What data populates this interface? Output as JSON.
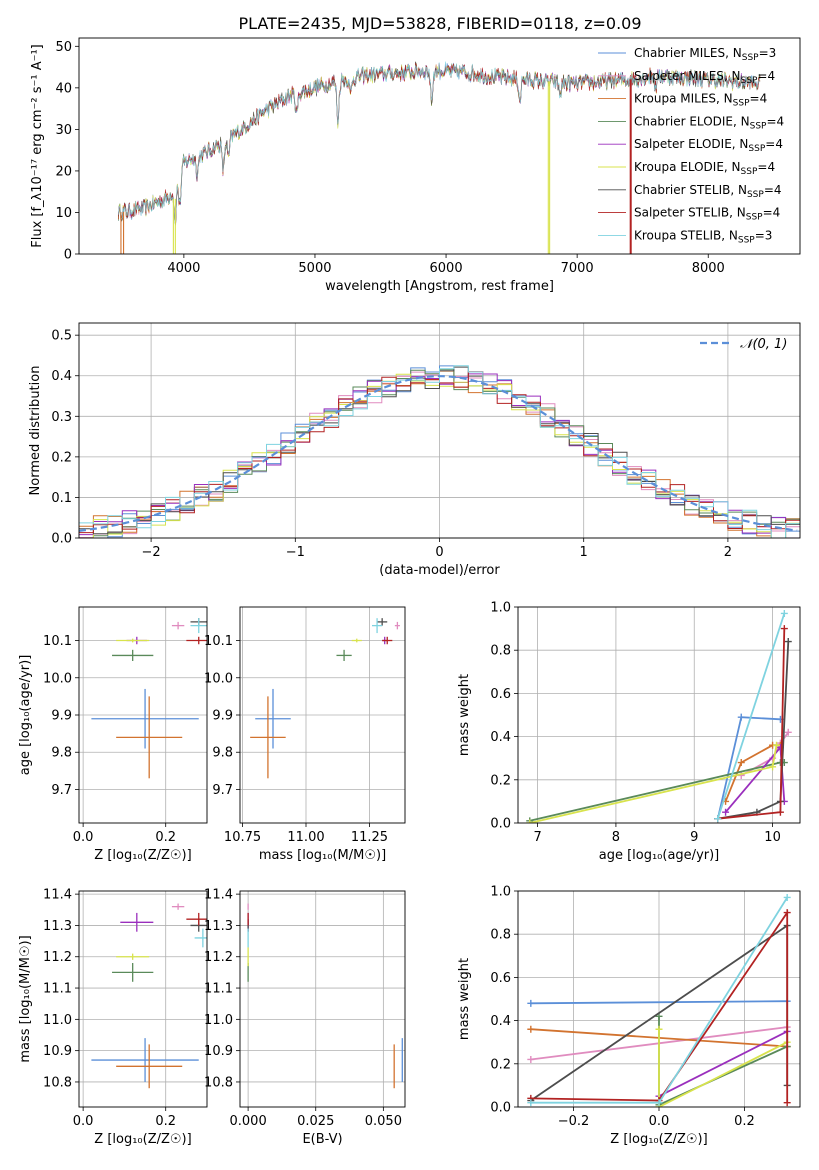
{
  "figure_title": "PLATE=2435, MJD=53828, FIBERID=0118, z=0.09",
  "colors": {
    "Chabrier MILES": "#5b8fd8",
    "Salpeter MILES": "#e08cbf",
    "Kroupa MILES": "#d2732f",
    "Chabrier ELODIE": "#5a8a5a",
    "Salpeter ELODIE": "#9a2fbd",
    "Kroupa ELODIE": "#d8e34d",
    "Chabrier STELIB": "#4d4d4d",
    "Salpeter STELIB": "#b22222",
    "Kroupa STELIB": "#7fd3e0"
  },
  "chart_data": [
    {
      "id": "spectrum",
      "type": "line",
      "title": "PLATE=2435, MJD=53828, FIBERID=0118, z=0.09",
      "xlabel": "wavelength [Angstrom, rest frame]",
      "ylabel": "Flux [f_λ10⁻¹⁷ erg cm⁻² s⁻¹ A⁻¹]",
      "xlim": [
        3200,
        8700
      ],
      "ylim": [
        0,
        52
      ],
      "xticks": [
        4000,
        5000,
        6000,
        7000,
        8000
      ],
      "yticks": [
        0,
        10,
        20,
        30,
        40,
        50
      ],
      "grid": false,
      "legend_position": "top-right",
      "legend": [
        {
          "label": "Chabrier MILES, N",
          "sub": "SSP",
          "tail": "=3",
          "color": "#5b8fd8"
        },
        {
          "label": "Salpeter MILES, N",
          "sub": "SSP",
          "tail": "=4",
          "color": "#e08cbf"
        },
        {
          "label": "Kroupa MILES, N",
          "sub": "SSP",
          "tail": "=4",
          "color": "#d2732f"
        },
        {
          "label": "Chabrier ELODIE, N",
          "sub": "SSP",
          "tail": "=4",
          "color": "#5a8a5a"
        },
        {
          "label": "Salpeter ELODIE, N",
          "sub": "SSP",
          "tail": "=4",
          "color": "#9a2fbd"
        },
        {
          "label": "Kroupa ELODIE, N",
          "sub": "SSP",
          "tail": "=4",
          "color": "#d8e34d"
        },
        {
          "label": "Chabrier STELIB, N",
          "sub": "SSP",
          "tail": "=4",
          "color": "#4d4d4d"
        },
        {
          "label": "Salpeter STELIB, N",
          "sub": "SSP",
          "tail": "=4",
          "color": "#b22222"
        },
        {
          "label": "Kroupa STELIB, N",
          "sub": "SSP",
          "tail": "=3",
          "color": "#7fd3e0"
        }
      ],
      "continuum": [
        [
          3500,
          10
        ],
        [
          3700,
          11
        ],
        [
          3900,
          14
        ],
        [
          4000,
          22
        ],
        [
          4200,
          25
        ],
        [
          4400,
          29
        ],
        [
          4600,
          34
        ],
        [
          4800,
          38
        ],
        [
          5000,
          40
        ],
        [
          5200,
          42
        ],
        [
          5400,
          43
        ],
        [
          5600,
          43.5
        ],
        [
          5800,
          44
        ],
        [
          6000,
          44
        ],
        [
          6200,
          43.5
        ],
        [
          6400,
          42.5
        ],
        [
          6600,
          42
        ],
        [
          6800,
          41.5
        ],
        [
          7000,
          41
        ],
        [
          7200,
          41.5
        ],
        [
          7400,
          42
        ],
        [
          7600,
          43
        ],
        [
          8000,
          42
        ],
        [
          8400,
          41
        ]
      ],
      "absorption_lines": [
        [
          3934,
          9
        ],
        [
          3969,
          8
        ],
        [
          4102,
          4
        ],
        [
          4300,
          7
        ],
        [
          4340,
          5
        ],
        [
          4861,
          5
        ],
        [
          5175,
          10
        ],
        [
          5270,
          4
        ],
        [
          5890,
          7
        ],
        [
          6563,
          5
        ],
        [
          6870,
          3
        ],
        [
          7600,
          3
        ]
      ],
      "model_sentinel_drops": [
        [
          3520,
          3540,
          "#d2732f"
        ],
        [
          3920,
          3935,
          "#d8e34d"
        ],
        [
          6780,
          6790,
          "#d8e34d"
        ],
        [
          7405,
          7412,
          "#b22222"
        ]
      ]
    },
    {
      "id": "residuals",
      "type": "bar",
      "xlabel": "(data-model)/error",
      "ylabel": "Normed distribution",
      "xlim": [
        -2.5,
        2.5
      ],
      "ylim": [
        0,
        0.53
      ],
      "xticks": [
        -2,
        -1,
        0,
        1,
        2
      ],
      "yticks": [
        0.0,
        0.1,
        0.2,
        0.3,
        0.4,
        0.5
      ],
      "grid": true,
      "legend_position": "top-right",
      "legend": [
        {
          "label": "𝒩(0, 1)",
          "color": "#5b8fd8",
          "dashed": true
        }
      ],
      "bin_width": 0.1
    },
    {
      "id": "age_vs_Z",
      "type": "scatter",
      "xlabel": "Z [log₁₀(Z/Z☉)]",
      "ylabel": "age  [log₁₀(age/yr)]",
      "xlim": [
        -0.01,
        0.3
      ],
      "ylim": [
        9.61,
        10.19
      ],
      "xticks": [
        0.0,
        0.2
      ],
      "yticks": [
        9.7,
        9.8,
        9.9,
        10.0,
        10.1
      ],
      "grid": true,
      "points": [
        {
          "model": "Chabrier MILES",
          "x": 0.15,
          "xerr": 0.13,
          "y": 9.89,
          "yerr": 0.08
        },
        {
          "model": "Kroupa MILES",
          "x": 0.16,
          "xerr": 0.08,
          "y": 9.84,
          "yerr": 0.11
        },
        {
          "model": "Salpeter MILES",
          "x": 0.23,
          "xerr": 0.015,
          "y": 10.14,
          "yerr": 0.01
        },
        {
          "model": "Chabrier ELODIE",
          "x": 0.12,
          "xerr": 0.05,
          "y": 10.06,
          "yerr": 0.015
        },
        {
          "model": "Salpeter ELODIE",
          "x": 0.13,
          "xerr": 0.025,
          "y": 10.1,
          "yerr": 0.01
        },
        {
          "model": "Kroupa ELODIE",
          "x": 0.12,
          "xerr": 0.04,
          "y": 10.1,
          "yerr": 0.005
        },
        {
          "model": "Chabrier STELIB",
          "x": 0.28,
          "xerr": 0.02,
          "y": 10.15,
          "yerr": 0.01
        },
        {
          "model": "Salpeter STELIB",
          "x": 0.28,
          "xerr": 0.03,
          "y": 10.1,
          "yerr": 0.01
        },
        {
          "model": "Kroupa STELIB",
          "x": 0.28,
          "xerr": 0.02,
          "y": 10.14,
          "yerr": 0.02
        }
      ]
    },
    {
      "id": "age_vs_mass",
      "type": "scatter",
      "xlabel": "mass [log₁₀(M/M☉)]",
      "xlim": [
        10.74,
        11.39
      ],
      "ylim": [
        9.61,
        10.19
      ],
      "xticks": [
        10.75,
        11.0,
        11.25
      ],
      "yticks": [
        9.7,
        9.8,
        9.9,
        10.0,
        10.1
      ],
      "grid": true,
      "points": [
        {
          "model": "Chabrier MILES",
          "x": 10.87,
          "xerr": 0.07,
          "y": 9.89,
          "yerr": 0.08
        },
        {
          "model": "Kroupa MILES",
          "x": 10.85,
          "xerr": 0.07,
          "y": 9.84,
          "yerr": 0.11
        },
        {
          "model": "Salpeter MILES",
          "x": 11.36,
          "xerr": 0.01,
          "y": 10.14,
          "yerr": 0.01
        },
        {
          "model": "Chabrier ELODIE",
          "x": 11.15,
          "xerr": 0.03,
          "y": 10.06,
          "yerr": 0.015
        },
        {
          "model": "Salpeter ELODIE",
          "x": 11.31,
          "xerr": 0.01,
          "y": 10.1,
          "yerr": 0.01
        },
        {
          "model": "Kroupa ELODIE",
          "x": 11.2,
          "xerr": 0.02,
          "y": 10.1,
          "yerr": 0.005
        },
        {
          "model": "Chabrier STELIB",
          "x": 11.3,
          "xerr": 0.02,
          "y": 10.15,
          "yerr": 0.01
        },
        {
          "model": "Salpeter STELIB",
          "x": 11.32,
          "xerr": 0.02,
          "y": 10.1,
          "yerr": 0.01
        },
        {
          "model": "Kroupa STELIB",
          "x": 11.28,
          "xerr": 0.02,
          "y": 10.14,
          "yerr": 0.02
        }
      ]
    },
    {
      "id": "mass_weight_vs_age",
      "type": "line",
      "xlabel": "age  [log₁₀(age/yr)]",
      "ylabel": "mass weight",
      "xlim": [
        6.75,
        10.35
      ],
      "ylim": [
        0,
        1
      ],
      "xticks": [
        7,
        8,
        9,
        10
      ],
      "yticks": [
        0.0,
        0.2,
        0.4,
        0.6,
        0.8,
        1.0
      ],
      "grid": true,
      "series": [
        {
          "model": "Chabrier MILES",
          "x": [
            9.3,
            9.6,
            10.1
          ],
          "y": [
            0.02,
            0.49,
            0.48
          ]
        },
        {
          "model": "Salpeter MILES",
          "x": [
            9.6,
            10.0,
            10.1,
            10.2
          ],
          "y": [
            0.22,
            0.3,
            0.37,
            0.42
          ]
        },
        {
          "model": "Kroupa MILES",
          "x": [
            9.4,
            9.6,
            10.0,
            10.1
          ],
          "y": [
            0.1,
            0.28,
            0.36,
            0.36
          ]
        },
        {
          "model": "Chabrier ELODIE",
          "x": [
            6.9,
            10.1,
            10.15
          ],
          "y": [
            0.01,
            0.28,
            0.28
          ]
        },
        {
          "model": "Salpeter ELODIE",
          "x": [
            9.4,
            10.1,
            10.15
          ],
          "y": [
            0.05,
            0.35,
            0.1
          ]
        },
        {
          "model": "Kroupa ELODIE",
          "x": [
            6.9,
            10.0,
            10.05
          ],
          "y": [
            0.0,
            0.26,
            0.36
          ]
        },
        {
          "model": "Chabrier STELIB",
          "x": [
            9.3,
            9.8,
            10.1,
            10.2
          ],
          "y": [
            0.02,
            0.05,
            0.1,
            0.84
          ]
        },
        {
          "model": "Salpeter STELIB",
          "x": [
            9.3,
            10.1,
            10.15
          ],
          "y": [
            0.02,
            0.05,
            0.9
          ]
        },
        {
          "model": "Kroupa STELIB",
          "x": [
            9.3,
            10.15
          ],
          "y": [
            0.02,
            0.97
          ]
        }
      ]
    },
    {
      "id": "mass_vs_Z",
      "type": "scatter",
      "xlabel": "Z [log₁₀(Z/Z☉)]",
      "ylabel": "mass [log₁₀(M/M☉)]",
      "xlim": [
        -0.01,
        0.3
      ],
      "ylim": [
        10.72,
        11.41
      ],
      "xticks": [
        0.0,
        0.2
      ],
      "yticks": [
        10.8,
        10.9,
        11.0,
        11.1,
        11.2,
        11.3,
        11.4
      ],
      "grid": true,
      "points": [
        {
          "model": "Chabrier MILES",
          "x": 0.15,
          "xerr": 0.13,
          "y": 10.87,
          "yerr": 0.07
        },
        {
          "model": "Kroupa MILES",
          "x": 0.16,
          "xerr": 0.08,
          "y": 10.85,
          "yerr": 0.07
        },
        {
          "model": "Salpeter MILES",
          "x": 0.23,
          "xerr": 0.015,
          "y": 11.36,
          "yerr": 0.01
        },
        {
          "model": "Chabrier ELODIE",
          "x": 0.12,
          "xerr": 0.05,
          "y": 11.15,
          "yerr": 0.03
        },
        {
          "model": "Salpeter ELODIE",
          "x": 0.13,
          "xerr": 0.04,
          "y": 11.31,
          "yerr": 0.03
        },
        {
          "model": "Kroupa ELODIE",
          "x": 0.12,
          "xerr": 0.04,
          "y": 11.2,
          "yerr": 0.01
        },
        {
          "model": "Chabrier STELIB",
          "x": 0.28,
          "xerr": 0.02,
          "y": 11.3,
          "yerr": 0.02
        },
        {
          "model": "Salpeter STELIB",
          "x": 0.28,
          "xerr": 0.03,
          "y": 11.32,
          "yerr": 0.02
        },
        {
          "model": "Kroupa STELIB",
          "x": 0.29,
          "xerr": 0.02,
          "y": 11.26,
          "yerr": 0.03
        }
      ]
    },
    {
      "id": "mass_vs_EBV",
      "type": "scatter",
      "xlabel": "E(B-V)",
      "xlim": [
        -0.003,
        0.058
      ],
      "ylim": [
        10.72,
        11.41
      ],
      "xticks": [
        0.0,
        0.025,
        0.05
      ],
      "yticks": [
        10.8,
        10.9,
        11.0,
        11.1,
        11.2,
        11.3,
        11.4
      ],
      "grid": true,
      "points": [
        {
          "model": "Chabrier MILES",
          "x": 0.057,
          "xerr": 0.0,
          "y": 10.87,
          "yerr": 0.07
        },
        {
          "model": "Kroupa MILES",
          "x": 0.054,
          "xerr": 0.0,
          "y": 10.85,
          "yerr": 0.07
        },
        {
          "model": "Salpeter MILES",
          "x": 0.0,
          "xerr": 0.0,
          "y": 11.36,
          "yerr": 0.01
        },
        {
          "model": "Chabrier ELODIE",
          "x": 0.0,
          "xerr": 0.0,
          "y": 11.15,
          "yerr": 0.03
        },
        {
          "model": "Salpeter ELODIE",
          "x": 0.0,
          "xerr": 0.0,
          "y": 11.31,
          "yerr": 0.03
        },
        {
          "model": "Kroupa ELODIE",
          "x": 0.0,
          "xerr": 0.0,
          "y": 11.2,
          "yerr": 0.03
        },
        {
          "model": "Chabrier STELIB",
          "x": 0.0,
          "xerr": 0.0,
          "y": 11.3,
          "yerr": 0.02
        },
        {
          "model": "Salpeter STELIB",
          "x": 0.0,
          "xerr": 0.0,
          "y": 11.32,
          "yerr": 0.02
        },
        {
          "model": "Kroupa STELIB",
          "x": 0.0,
          "xerr": 0.0,
          "y": 11.26,
          "yerr": 0.03
        }
      ]
    },
    {
      "id": "mass_weight_vs_Z",
      "type": "line",
      "xlabel": "Z [log₁₀(Z/Z☉)]",
      "ylabel": "mass weight",
      "xlim": [
        -0.33,
        0.33
      ],
      "ylim": [
        0,
        1
      ],
      "xticks": [
        -0.2,
        0.0,
        0.2
      ],
      "yticks": [
        0.0,
        0.2,
        0.4,
        0.6,
        0.8,
        1.0
      ],
      "grid": true,
      "series": [
        {
          "model": "Chabrier MILES",
          "x": [
            -0.3,
            0.3
          ],
          "y": [
            0.48,
            0.49
          ]
        },
        {
          "model": "Salpeter MILES",
          "x": [
            -0.3,
            0.3
          ],
          "y": [
            0.22,
            0.37
          ]
        },
        {
          "model": "Kroupa MILES",
          "x": [
            -0.3,
            0.3
          ],
          "y": [
            0.36,
            0.28
          ]
        },
        {
          "model": "Chabrier ELODIE",
          "x": [
            0.0,
            0.0,
            0.3
          ],
          "y": [
            0.42,
            0.01,
            0.28
          ]
        },
        {
          "model": "Salpeter ELODIE",
          "x": [
            0.0,
            0.3
          ],
          "y": [
            0.05,
            0.35
          ]
        },
        {
          "model": "Kroupa ELODIE",
          "x": [
            0.0,
            0.0,
            0.3
          ],
          "y": [
            0.36,
            0.0,
            0.3
          ]
        },
        {
          "model": "Chabrier STELIB",
          "x": [
            -0.3,
            0.3,
            0.3
          ],
          "y": [
            0.03,
            0.84,
            0.1
          ]
        },
        {
          "model": "Salpeter STELIB",
          "x": [
            -0.3,
            0.0,
            0.3,
            0.3
          ],
          "y": [
            0.04,
            0.03,
            0.9,
            0.02
          ]
        },
        {
          "model": "Kroupa STELIB",
          "x": [
            -0.3,
            0.0,
            0.3
          ],
          "y": [
            0.02,
            0.02,
            0.97
          ]
        }
      ]
    }
  ]
}
